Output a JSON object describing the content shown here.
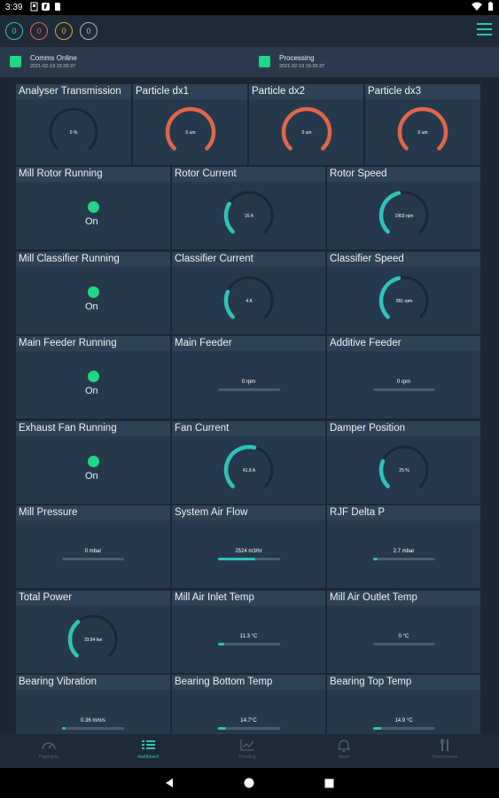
{
  "status_bar": {
    "time": "3:39"
  },
  "topbar": {
    "badges": [
      {
        "value": "0",
        "color": "#2ec4b6"
      },
      {
        "value": "0",
        "color": "#e0654a"
      },
      {
        "value": "0",
        "color": "#e0a82e"
      },
      {
        "value": "0",
        "color": "#a9b6c4"
      }
    ]
  },
  "status": [
    {
      "title": "Comms Online",
      "time": "2021-02-19 15:39:37"
    },
    {
      "title": "Processing",
      "time": "2021-02-19 15:39:37"
    }
  ],
  "tiles_row1": [
    {
      "title": "Analyser Transmission",
      "type": "gauge",
      "value": 0,
      "max": 100,
      "label": "0 %",
      "color": "#2ec4b6"
    },
    {
      "title": "Particle dx1",
      "type": "gauge",
      "value": 100,
      "max": 100,
      "label": "0 um",
      "color": "#e0654a"
    },
    {
      "title": "Particle dx2",
      "type": "gauge",
      "value": 100,
      "max": 100,
      "label": "0 um",
      "color": "#e0654a"
    },
    {
      "title": "Particle dx3",
      "type": "gauge",
      "value": 100,
      "max": 100,
      "label": "0 um",
      "color": "#e0654a"
    }
  ],
  "tiles": [
    {
      "title": "Mill Rotor Running",
      "type": "indicator",
      "state": "On"
    },
    {
      "title": "Rotor Current",
      "type": "gauge",
      "value": 0.28,
      "max": 1,
      "label": "16 A",
      "color": "#2ec4b6"
    },
    {
      "title": "Rotor Speed",
      "type": "gauge",
      "value": 0.45,
      "max": 1,
      "label": "1903 rpm",
      "color": "#2ec4b6"
    },
    {
      "title": "Mill Classifier Running",
      "type": "indicator",
      "state": "On"
    },
    {
      "title": "Classifier Current",
      "type": "gauge",
      "value": 0.25,
      "max": 1,
      "label": "4 A",
      "color": "#2ec4b6"
    },
    {
      "title": "Classifier Speed",
      "type": "gauge",
      "value": 0.45,
      "max": 1,
      "label": "991 rpm",
      "color": "#2ec4b6"
    },
    {
      "title": "Main Feeder Running",
      "type": "indicator",
      "state": "On"
    },
    {
      "title": "Main Feeder",
      "type": "bar",
      "value": 0,
      "label": "0 rpm"
    },
    {
      "title": "Additive Feeder",
      "type": "bar",
      "value": 0,
      "label": "0 rpm"
    },
    {
      "title": "Exhaust Fan Running",
      "type": "indicator",
      "state": "On"
    },
    {
      "title": "Fan Current",
      "type": "gauge",
      "value": 0.55,
      "max": 1,
      "label": "41.8 A",
      "color": "#2ec4b6"
    },
    {
      "title": "Damper Position",
      "type": "gauge",
      "value": 0.25,
      "max": 1,
      "label": "25 %",
      "color": "#2ec4b6"
    },
    {
      "title": "Mill Pressure",
      "type": "bar",
      "value": 0,
      "label": "0 mbar"
    },
    {
      "title": "System Air Flow",
      "type": "bar",
      "value": 0.6,
      "label": "2524 m3/hr"
    },
    {
      "title": "RJF Delta P",
      "type": "bar",
      "value": 0.08,
      "label": "2.7 mbar"
    },
    {
      "title": "Total Power",
      "type": "gauge",
      "value": 0.35,
      "max": 1,
      "label": "33.84 kw",
      "color": "#2ec4b6"
    },
    {
      "title": "Mill Air Inlet Temp",
      "type": "bar",
      "value": 0.1,
      "label": "11.3 °C"
    },
    {
      "title": "Mill Air Outlet Temp",
      "type": "bar",
      "value": 0,
      "label": "0 °C"
    },
    {
      "title": "Bearing Vibration",
      "type": "bar",
      "value": 0.02,
      "label": "0.36 mm/s"
    },
    {
      "title": "Bearing Bottom Temp",
      "type": "bar",
      "value": 0.13,
      "label": "14.7°C"
    },
    {
      "title": "Bearing Top Temp",
      "type": "bar",
      "value": 0.14,
      "label": "14.9 °C"
    }
  ],
  "bottom_nav": [
    {
      "label": "Highlights",
      "icon": "gauge-icon",
      "active": false
    },
    {
      "label": "dashboard",
      "icon": "list-icon",
      "active": true
    },
    {
      "label": "Trending",
      "icon": "chart-icon",
      "active": false
    },
    {
      "label": "Alarm",
      "icon": "bell-icon",
      "active": false
    },
    {
      "label": "Maintenance",
      "icon": "tools-icon",
      "active": false
    }
  ]
}
